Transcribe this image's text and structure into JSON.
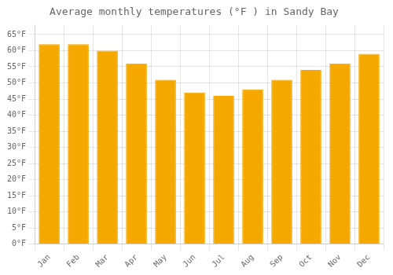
{
  "chart_data": {
    "type": "bar",
    "title": "Average monthly temperatures (°F ) in Sandy Bay",
    "categories": [
      "Jan",
      "Feb",
      "Mar",
      "Apr",
      "May",
      "Jun",
      "Jul",
      "Aug",
      "Sep",
      "Oct",
      "Nov",
      "Dec"
    ],
    "values": [
      62,
      62,
      60,
      56,
      51,
      47,
      46,
      48,
      51,
      54,
      56,
      59
    ],
    "color": "#F5A800",
    "ylim": [
      0,
      68
    ],
    "yticks": [
      {
        "value": 0,
        "label": "0°F"
      },
      {
        "value": 5,
        "label": "5°F"
      },
      {
        "value": 10,
        "label": "10°F"
      },
      {
        "value": 15,
        "label": "15°F"
      },
      {
        "value": 20,
        "label": "20°F"
      },
      {
        "value": 25,
        "label": "25°F"
      },
      {
        "value": 30,
        "label": "30°F"
      },
      {
        "value": 35,
        "label": "35°F"
      },
      {
        "value": 40,
        "label": "40°F"
      },
      {
        "value": 45,
        "label": "45°F"
      },
      {
        "value": 50,
        "label": "50°F"
      },
      {
        "value": 55,
        "label": "55°F"
      },
      {
        "value": 60,
        "label": "60°F"
      },
      {
        "value": 65,
        "label": "65°F"
      }
    ],
    "grid": true
  }
}
